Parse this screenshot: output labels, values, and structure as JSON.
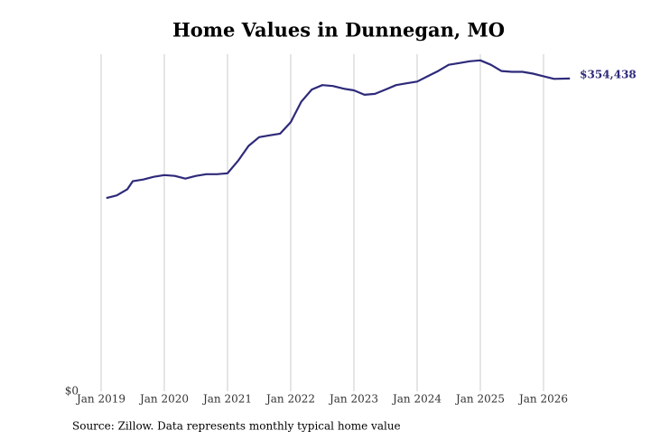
{
  "chart_data": {
    "type": "line",
    "title": "Home Values in Dunnegan, MO",
    "source": "Source: Zillow. Data represents monthly typical home value",
    "x": [
      "2019-02",
      "2019-04",
      "2019-06",
      "2019-07",
      "2019-09",
      "2019-11",
      "2020-01",
      "2020-03",
      "2020-05",
      "2020-07",
      "2020-09",
      "2020-11",
      "2021-01",
      "2021-03",
      "2021-05",
      "2021-07",
      "2021-09",
      "2021-11",
      "2022-01",
      "2022-03",
      "2022-05",
      "2022-07",
      "2022-09",
      "2022-11",
      "2023-01",
      "2023-03",
      "2023-05",
      "2023-07",
      "2023-09",
      "2023-11",
      "2024-01",
      "2024-03",
      "2024-05",
      "2024-07",
      "2024-09",
      "2024-11",
      "2025-01",
      "2025-03",
      "2025-05",
      "2025-07",
      "2025-09",
      "2025-11",
      "2026-01",
      "2026-03",
      "2026-06"
    ],
    "series": [
      {
        "name": "Home value",
        "color": "#2e2a7a",
        "values": [
          219000,
          222000,
          229000,
          238000,
          240000,
          243000,
          245000,
          244000,
          241000,
          244000,
          246000,
          246000,
          247000,
          261000,
          278000,
          288000,
          290000,
          292000,
          305000,
          328000,
          342000,
          347000,
          346000,
          343000,
          341000,
          336000,
          337000,
          342000,
          347000,
          349000,
          351000,
          357000,
          363000,
          370000,
          372000,
          374000,
          375000,
          370000,
          363000,
          362000,
          362000,
          360000,
          357000,
          354000,
          354438
        ],
        "value_labels": [
          null,
          null,
          null,
          null,
          null,
          null,
          null,
          null,
          null,
          null,
          null,
          null,
          null,
          null,
          null,
          null,
          null,
          null,
          null,
          null,
          null,
          null,
          null,
          null,
          null,
          null,
          null,
          null,
          null,
          null,
          null,
          null,
          null,
          null,
          null,
          null,
          null,
          null,
          null,
          null,
          null,
          null,
          null,
          null,
          "$354,438"
        ]
      }
    ],
    "xlim": [
      "2018-11",
      "2026-07"
    ],
    "xticks": [
      {
        "value": "2019-01",
        "label": "Jan 2019"
      },
      {
        "value": "2020-01",
        "label": "Jan 2020"
      },
      {
        "value": "2021-01",
        "label": "Jan 2021"
      },
      {
        "value": "2022-01",
        "label": "Jan 2022"
      },
      {
        "value": "2023-01",
        "label": "Jan 2023"
      },
      {
        "value": "2024-01",
        "label": "Jan 2024"
      },
      {
        "value": "2025-01",
        "label": "Jan 2025"
      },
      {
        "value": "2026-01",
        "label": "Jan 2026"
      }
    ],
    "ylim": [
      0,
      382000
    ],
    "yticks": [
      {
        "value": 0,
        "label": "$0"
      }
    ],
    "grid": "x"
  }
}
